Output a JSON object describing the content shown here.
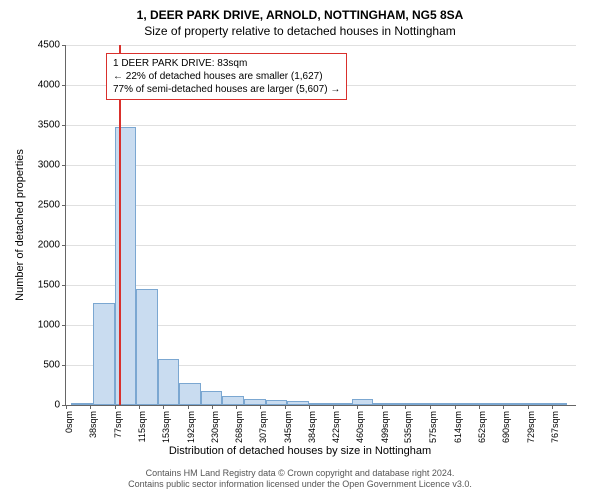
{
  "title_main": "1, DEER PARK DRIVE, ARNOLD, NOTTINGHAM, NG5 8SA",
  "title_sub": "Size of property relative to detached houses in Nottingham",
  "y_label": "Number of detached properties",
  "x_label": "Distribution of detached houses by size in Nottingham",
  "footer_line1": "Contains HM Land Registry data © Crown copyright and database right 2024.",
  "footer_line2": "Contains public sector information licensed under the Open Government Licence v3.0.",
  "chart": {
    "type": "histogram",
    "background_color": "#ffffff",
    "grid_color": "#e0e0e0",
    "axis_color": "#666666",
    "bar_fill": "#c9dcf0",
    "bar_stroke": "#7ba7d1",
    "ref_line_color": "#d9302c",
    "ref_line_x": 83,
    "ylim": [
      0,
      4500
    ],
    "ytick_step": 500,
    "xlim": [
      0,
      805
    ],
    "bar_width_units": 34,
    "x_ticks": [
      {
        "pos": 0,
        "label": "0sqm"
      },
      {
        "pos": 38,
        "label": "38sqm"
      },
      {
        "pos": 77,
        "label": "77sqm"
      },
      {
        "pos": 115,
        "label": "115sqm"
      },
      {
        "pos": 153,
        "label": "153sqm"
      },
      {
        "pos": 192,
        "label": "192sqm"
      },
      {
        "pos": 230,
        "label": "230sqm"
      },
      {
        "pos": 268,
        "label": "268sqm"
      },
      {
        "pos": 307,
        "label": "307sqm"
      },
      {
        "pos": 345,
        "label": "345sqm"
      },
      {
        "pos": 384,
        "label": "384sqm"
      },
      {
        "pos": 422,
        "label": "422sqm"
      },
      {
        "pos": 460,
        "label": "460sqm"
      },
      {
        "pos": 499,
        "label": "499sqm"
      },
      {
        "pos": 535,
        "label": "535sqm"
      },
      {
        "pos": 575,
        "label": "575sqm"
      },
      {
        "pos": 614,
        "label": "614sqm"
      },
      {
        "pos": 652,
        "label": "652sqm"
      },
      {
        "pos": 690,
        "label": "690sqm"
      },
      {
        "pos": 729,
        "label": "729sqm"
      },
      {
        "pos": 767,
        "label": "767sqm"
      }
    ],
    "bars": [
      {
        "x": 25,
        "value": 30
      },
      {
        "x": 60,
        "value": 1270
      },
      {
        "x": 94,
        "value": 3480
      },
      {
        "x": 128,
        "value": 1450
      },
      {
        "x": 162,
        "value": 570
      },
      {
        "x": 196,
        "value": 280
      },
      {
        "x": 230,
        "value": 170
      },
      {
        "x": 264,
        "value": 110
      },
      {
        "x": 298,
        "value": 80
      },
      {
        "x": 332,
        "value": 60
      },
      {
        "x": 366,
        "value": 50
      },
      {
        "x": 400,
        "value": 30
      },
      {
        "x": 434,
        "value": 20
      },
      {
        "x": 468,
        "value": 80
      },
      {
        "x": 502,
        "value": 10
      },
      {
        "x": 536,
        "value": 5
      },
      {
        "x": 570,
        "value": 5
      },
      {
        "x": 604,
        "value": 5
      },
      {
        "x": 638,
        "value": 5
      },
      {
        "x": 672,
        "value": 5
      },
      {
        "x": 706,
        "value": 5
      },
      {
        "x": 740,
        "value": 5
      },
      {
        "x": 774,
        "value": 5
      }
    ]
  },
  "info_box": {
    "line1": "1 DEER PARK DRIVE: 83sqm",
    "line2": "← 22% of detached houses are smaller (1,627)",
    "line3": "77% of semi-detached houses are larger (5,607) →"
  }
}
